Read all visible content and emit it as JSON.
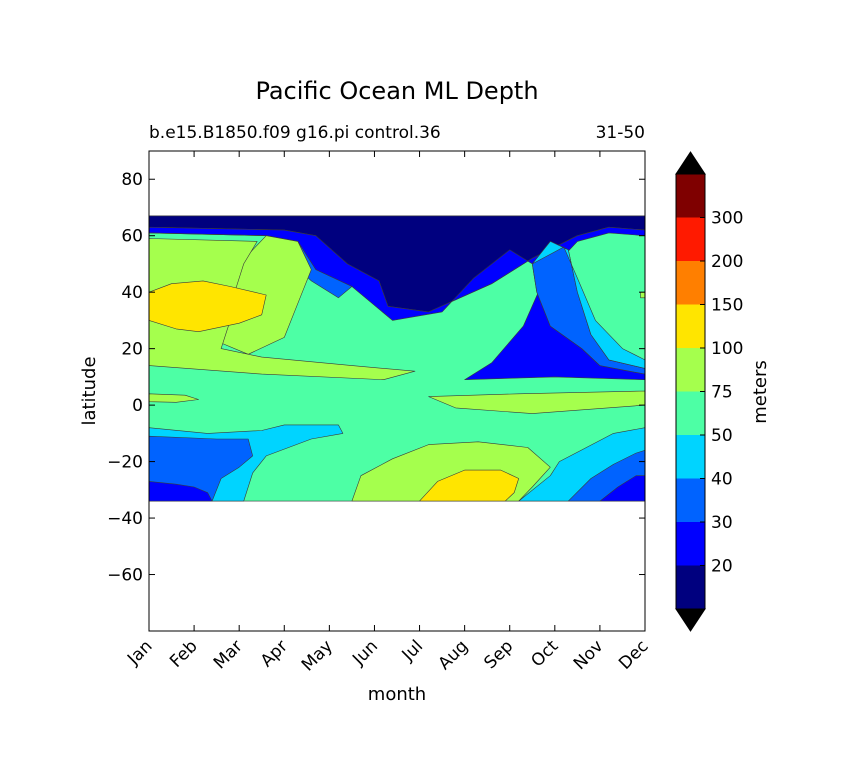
{
  "chart_data": {
    "type": "contourf",
    "title": "Pacific Ocean ML Depth",
    "subtitle_left": "b.e15.B1850.f09 g16.pi control.36",
    "subtitle_right": "31-50",
    "xlabel": "month",
    "ylabel": "latitude",
    "colorbar_label": "meters",
    "x_ticks": [
      "Jan",
      "Feb",
      "Mar",
      "Apr",
      "May",
      "Jun",
      "Jul",
      "Aug",
      "Sep",
      "Oct",
      "Nov",
      "Dec"
    ],
    "xlim": [
      1,
      12
    ],
    "ylim": [
      -80,
      90
    ],
    "y_ticks": [
      80,
      60,
      40,
      20,
      0,
      -20,
      -40,
      -60
    ],
    "y_tick_labels": [
      "80",
      "60",
      "40",
      "20",
      "0",
      "−20",
      "−40",
      "−60"
    ],
    "data_lat_range": [
      -34,
      67
    ],
    "levels": [
      10,
      20,
      30,
      40,
      50,
      75,
      100,
      150,
      200,
      300,
      400
    ],
    "colorbar_tick_labels": [
      "20",
      "30",
      "40",
      "50",
      "75",
      "100",
      "150",
      "200",
      "300"
    ],
    "colors": [
      "#00007f",
      "#0000ff",
      "#0063ff",
      "#00d4ff",
      "#4dffa5",
      "#a5ff4d",
      "#ffe500",
      "#ff7f00",
      "#ff1a00",
      "#7f0000"
    ],
    "extend": "both",
    "extend_min_color": "#000000",
    "extend_max_color": "#000000",
    "mld_regions": [
      {
        "level_index": 4,
        "label": "50-75 background",
        "points": [
          [
            1,
            67
          ],
          [
            12,
            67
          ],
          [
            12,
            -34
          ],
          [
            1,
            -34
          ]
        ]
      },
      {
        "level_index": 0,
        "label": "northern winter-spring 10-20",
        "points": [
          [
            1,
            67
          ],
          [
            12,
            67
          ],
          [
            12,
            62
          ],
          [
            11.2,
            63
          ],
          [
            10.5,
            60
          ],
          [
            9.5,
            52
          ],
          [
            8.6,
            43
          ],
          [
            7.2,
            33
          ],
          [
            6.3,
            35
          ],
          [
            6.1,
            44
          ],
          [
            5.4,
            50
          ],
          [
            4.7,
            60
          ],
          [
            4.0,
            62
          ],
          [
            1,
            63
          ]
        ]
      },
      {
        "level_index": 1,
        "label": "northern 20-30",
        "points": [
          [
            1,
            63
          ],
          [
            4.0,
            62
          ],
          [
            4.7,
            60
          ],
          [
            5.4,
            50
          ],
          [
            6.1,
            44
          ],
          [
            6.3,
            35
          ],
          [
            7.2,
            33
          ],
          [
            8.6,
            43
          ],
          [
            9.5,
            52
          ],
          [
            10.5,
            60
          ],
          [
            11.2,
            63
          ],
          [
            12,
            62
          ],
          [
            12,
            60
          ],
          [
            11.2,
            61
          ],
          [
            10.5,
            58
          ],
          [
            9.8,
            46
          ],
          [
            9.3,
            28
          ],
          [
            8.6,
            15
          ],
          [
            8.0,
            9
          ],
          [
            10,
            10
          ],
          [
            12,
            9
          ],
          [
            12,
            11
          ],
          [
            11,
            14
          ],
          [
            10.6,
            20
          ],
          [
            9.9,
            28
          ],
          [
            9.6,
            40
          ],
          [
            9.5,
            50
          ],
          [
            9.0,
            55
          ],
          [
            8.2,
            45
          ],
          [
            7.5,
            33
          ],
          [
            6.4,
            30
          ],
          [
            5.5,
            42
          ],
          [
            4.7,
            48
          ],
          [
            4.3,
            58
          ],
          [
            3.6,
            60
          ],
          [
            1,
            61
          ]
        ]
      },
      {
        "level_index": 2,
        "label": "northern 30-40",
        "points": [
          [
            3.6,
            60
          ],
          [
            4.3,
            58
          ],
          [
            4.7,
            48
          ],
          [
            5.5,
            42
          ],
          [
            5.2,
            38
          ],
          [
            4.6,
            44
          ],
          [
            4.2,
            50
          ],
          [
            3.9,
            58
          ]
        ]
      },
      {
        "level_index": 2,
        "label": "autumn 30-40",
        "points": [
          [
            9.6,
            40
          ],
          [
            9.9,
            28
          ],
          [
            10.6,
            20
          ],
          [
            11,
            14
          ],
          [
            12,
            11
          ],
          [
            12,
            13
          ],
          [
            11.2,
            16
          ],
          [
            10.8,
            25
          ],
          [
            10.5,
            40
          ],
          [
            10.3,
            55
          ],
          [
            9.9,
            58
          ],
          [
            9.5,
            50
          ]
        ]
      },
      {
        "level_index": 3,
        "label": "autumn 40-50",
        "points": [
          [
            9.5,
            50
          ],
          [
            9.9,
            58
          ],
          [
            10.3,
            55
          ],
          [
            10.5,
            40
          ],
          [
            10.8,
            25
          ],
          [
            11.2,
            16
          ],
          [
            12,
            13
          ],
          [
            12,
            16
          ],
          [
            11.5,
            20
          ],
          [
            10.9,
            30
          ],
          [
            10.5,
            45
          ],
          [
            10.2,
            56
          ]
        ]
      },
      {
        "level_index": 5,
        "label": "northern winter 75-100",
        "points": [
          [
            1,
            61
          ],
          [
            3.6,
            60
          ],
          [
            3.3,
            55
          ],
          [
            2.9,
            48
          ],
          [
            2.8,
            40
          ],
          [
            2.7,
            30
          ],
          [
            2.6,
            22
          ],
          [
            3.2,
            18
          ],
          [
            4.0,
            24
          ],
          [
            4.4,
            40
          ],
          [
            4.6,
            48
          ],
          [
            4.3,
            58
          ],
          [
            3.6,
            60
          ]
        ]
      },
      {
        "level_index": 5,
        "label": "northern 75-100 main",
        "points": [
          [
            1,
            59
          ],
          [
            3.4,
            58
          ],
          [
            3.1,
            50
          ],
          [
            2.9,
            40
          ],
          [
            2.8,
            30
          ],
          [
            2.6,
            20
          ],
          [
            3.5,
            17
          ],
          [
            5.5,
            14
          ],
          [
            6.9,
            12
          ],
          [
            6.2,
            9
          ],
          [
            3.5,
            11
          ],
          [
            1,
            14
          ]
        ]
      },
      {
        "level_index": 6,
        "label": "northern 100-150",
        "points": [
          [
            1,
            40
          ],
          [
            1.5,
            43
          ],
          [
            2.2,
            44
          ],
          [
            2.8,
            42
          ],
          [
            3.6,
            39
          ],
          [
            3.5,
            32
          ],
          [
            3.0,
            29
          ],
          [
            2.1,
            26
          ],
          [
            1.6,
            27
          ],
          [
            1,
            30
          ]
        ]
      },
      {
        "level_index": 5,
        "label": "equatorial 75-100",
        "points": [
          [
            1,
            4
          ],
          [
            1.8,
            3.5
          ],
          [
            2.1,
            2
          ],
          [
            1.6,
            1
          ],
          [
            1,
            1.2
          ]
        ]
      },
      {
        "level_index": 5,
        "label": "equatorial 75-100 east",
        "points": [
          [
            7.2,
            3
          ],
          [
            9.2,
            4
          ],
          [
            12,
            5
          ],
          [
            12,
            0
          ],
          [
            9.5,
            -3
          ],
          [
            7.8,
            -1
          ]
        ]
      },
      {
        "level_index": 5,
        "label": "dec 75-100 north",
        "points": [
          [
            11.9,
            40
          ],
          [
            12,
            40
          ],
          [
            12,
            38
          ],
          [
            11.9,
            38
          ]
        ]
      },
      {
        "level_index": 3,
        "label": "southern 40-50",
        "points": [
          [
            1,
            -8
          ],
          [
            2.3,
            -10
          ],
          [
            3.5,
            -9
          ],
          [
            4.0,
            -7
          ],
          [
            5.2,
            -7
          ],
          [
            5.3,
            -10
          ],
          [
            4.6,
            -12
          ],
          [
            3.6,
            -18
          ],
          [
            3.3,
            -24
          ],
          [
            3.1,
            -34
          ],
          [
            1,
            -34
          ]
        ]
      },
      {
        "level_index": 2,
        "label": "southern 30-40",
        "points": [
          [
            1,
            -11
          ],
          [
            2.5,
            -12
          ],
          [
            3.2,
            -12
          ],
          [
            3.3,
            -18
          ],
          [
            3.0,
            -22
          ],
          [
            2.6,
            -26
          ],
          [
            2.4,
            -34
          ],
          [
            1,
            -34
          ]
        ]
      },
      {
        "level_index": 1,
        "label": "southern 20-30",
        "points": [
          [
            1,
            -27
          ],
          [
            1.6,
            -28
          ],
          [
            2.0,
            -29
          ],
          [
            2.3,
            -31
          ],
          [
            2.4,
            -34
          ],
          [
            1,
            -34
          ]
        ]
      },
      {
        "level_index": 5,
        "label": "southern 75-100",
        "points": [
          [
            5.5,
            -34
          ],
          [
            5.7,
            -25
          ],
          [
            6.4,
            -19
          ],
          [
            7.2,
            -14
          ],
          [
            8.3,
            -13
          ],
          [
            9.4,
            -15
          ],
          [
            9.9,
            -22
          ],
          [
            9.5,
            -29
          ],
          [
            9.2,
            -34
          ]
        ]
      },
      {
        "level_index": 6,
        "label": "southern 100-150",
        "points": [
          [
            7.0,
            -34
          ],
          [
            7.4,
            -27
          ],
          [
            8.0,
            -23
          ],
          [
            8.8,
            -23
          ],
          [
            9.2,
            -26
          ],
          [
            9.1,
            -31
          ],
          [
            8.9,
            -34
          ]
        ]
      },
      {
        "level_index": 3,
        "label": "southern spring 40-50",
        "points": [
          [
            9.2,
            -34
          ],
          [
            9.9,
            -25
          ],
          [
            10.1,
            -20
          ],
          [
            10.7,
            -15
          ],
          [
            11.3,
            -10
          ],
          [
            12,
            -8
          ],
          [
            12,
            -34
          ]
        ]
      },
      {
        "level_index": 2,
        "label": "southern spring 30-40",
        "points": [
          [
            10.3,
            -34
          ],
          [
            10.8,
            -26
          ],
          [
            11.3,
            -21
          ],
          [
            11.8,
            -17
          ],
          [
            12,
            -16
          ],
          [
            12,
            -34
          ]
        ]
      },
      {
        "level_index": 1,
        "label": "southern spring 20-30",
        "points": [
          [
            11.0,
            -34
          ],
          [
            11.4,
            -29
          ],
          [
            11.8,
            -25
          ],
          [
            12,
            -25
          ],
          [
            12,
            -34
          ]
        ]
      }
    ]
  }
}
